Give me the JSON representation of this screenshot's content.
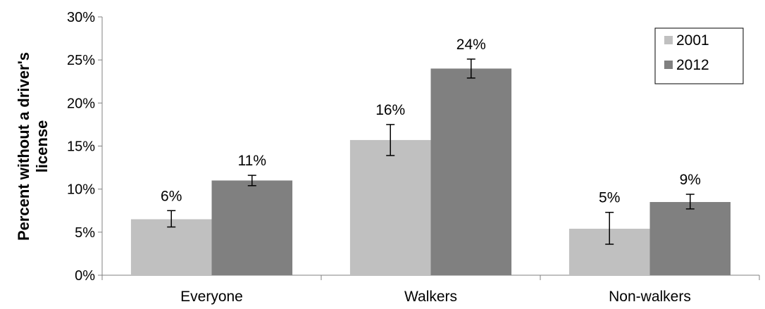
{
  "chart_data": {
    "type": "bar",
    "title": "",
    "xlabel": "",
    "ylabel_lines": [
      "Percent without a driver's",
      "license"
    ],
    "ylim": [
      0,
      30
    ],
    "y_ticks": [
      "0%",
      "5%",
      "10%",
      "15%",
      "20%",
      "25%",
      "30%"
    ],
    "y_tick_values": [
      0,
      5,
      10,
      15,
      20,
      25,
      30
    ],
    "categories": [
      "Everyone",
      "Walkers",
      "Non-walkers"
    ],
    "series": [
      {
        "name": "2001",
        "color": "#c0c0c0",
        "values": [
          6.5,
          15.7,
          5.4
        ],
        "error_low": [
          5.6,
          13.9,
          3.6
        ],
        "error_high": [
          7.5,
          17.5,
          7.3
        ],
        "labels": [
          "6%",
          "16%",
          "5%"
        ]
      },
      {
        "name": "2012",
        "color": "#808080",
        "values": [
          11.0,
          24.0,
          8.5
        ],
        "error_low": [
          10.4,
          22.9,
          7.7
        ],
        "error_high": [
          11.6,
          25.1,
          9.4
        ],
        "labels": [
          "11%",
          "24%",
          "9%"
        ]
      }
    ],
    "grid": false,
    "legend_position": "top-right"
  }
}
